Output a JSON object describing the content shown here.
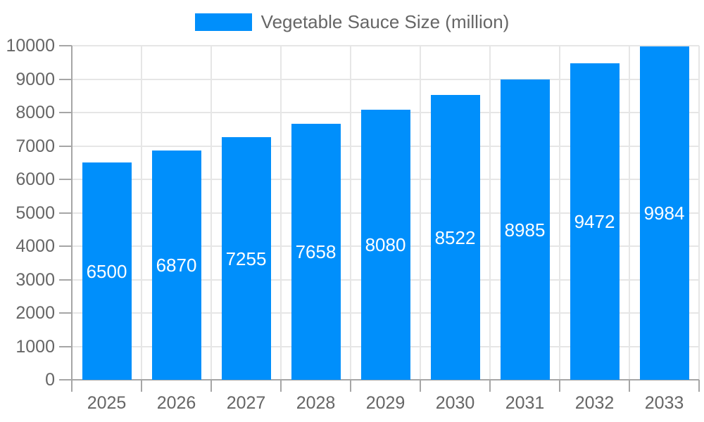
{
  "chart_data": {
    "type": "bar",
    "title": "",
    "legend": "Vegetable Sauce Size (million)",
    "legend_position": "top",
    "categories": [
      "2025",
      "2026",
      "2027",
      "2028",
      "2029",
      "2030",
      "2031",
      "2032",
      "2033"
    ],
    "values": [
      6500,
      6870,
      7255,
      7658,
      8080,
      8522,
      8985,
      9472,
      9984
    ],
    "bar_value_labels": [
      "6500",
      "6870",
      "7255",
      "7658",
      "8080",
      "8522",
      "8985",
      "9472",
      "9984"
    ],
    "xlabel": "",
    "ylabel": "",
    "ylim": [
      0,
      10000
    ],
    "ytick_step": 1000,
    "ytick_labels": [
      "0",
      "1000",
      "2000",
      "3000",
      "4000",
      "5000",
      "6000",
      "7000",
      "8000",
      "9000",
      "10000"
    ],
    "grid": true,
    "colors": {
      "bar": "#008FFB",
      "grid": "#e6e6e6",
      "axis": "#a6a6a6",
      "tick_text": "#666666",
      "legend_text": "#666666",
      "bar_label_text": "#ffffff",
      "background": "#ffffff"
    }
  }
}
